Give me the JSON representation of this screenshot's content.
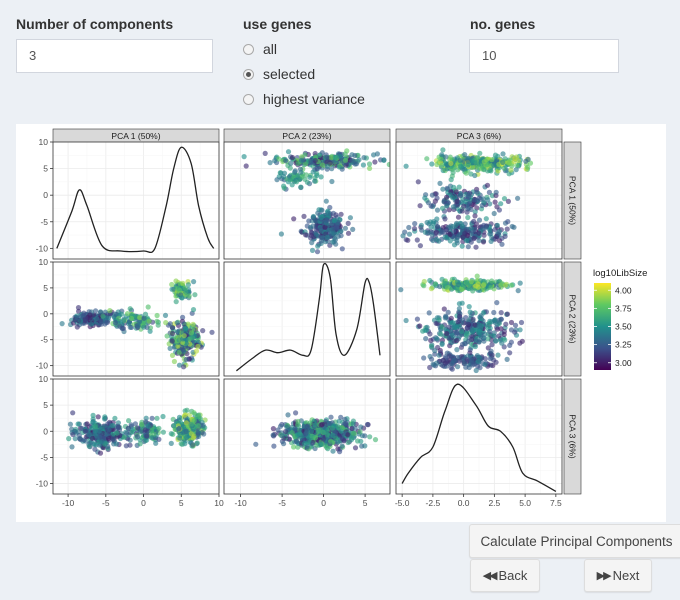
{
  "controls": {
    "num_components": {
      "label": "Number of components",
      "value": "3"
    },
    "use_genes": {
      "label": "use genes",
      "options": [
        {
          "label": "all",
          "checked": false
        },
        {
          "label": "selected",
          "checked": true
        },
        {
          "label": "highest variance",
          "checked": false
        }
      ]
    },
    "no_genes": {
      "label": "no. genes",
      "value": "10"
    }
  },
  "buttons": {
    "calculate": "Calculate Principal Components",
    "back": "Back",
    "back_icon": "double-left-arrow",
    "next": "Next",
    "next_icon": "double-right-arrow"
  },
  "chart_data": {
    "type": "scatter",
    "layout": "pairs-matrix",
    "strip_labels_top": [
      "PCA 1 (50%)",
      "PCA 2 (23%)",
      "PCA 3 (6%)"
    ],
    "strip_labels_right": [
      "PCA 1 (50%)",
      "PCA 2 (23%)",
      "PCA 3 (6%)"
    ],
    "y_ticks": [
      [
        "10",
        "5",
        "0",
        "-5",
        "-10"
      ],
      [
        "10",
        "5",
        "0",
        "-5",
        "-10"
      ],
      [
        "10",
        "5",
        "0",
        "-5",
        "-10"
      ]
    ],
    "y_tick_values": [
      10,
      5,
      0,
      -5,
      -10
    ],
    "x_ticks": [
      [
        "-10",
        "-5",
        "0",
        "5",
        "10"
      ],
      [
        "-10",
        "-5",
        "0",
        "5"
      ],
      [
        "-5.0",
        "-2.5",
        "0.0",
        "2.5",
        "5.0",
        "7.5"
      ]
    ],
    "axis_ranges": {
      "pca1": [
        -12,
        10
      ],
      "pca2": [
        -12,
        8
      ],
      "pca3": [
        -5.5,
        8
      ],
      "y": [
        -12,
        10
      ]
    },
    "legend": {
      "title": "log10LibSize",
      "ticks": [
        "4.00",
        "3.75",
        "3.50",
        "3.25",
        "3.00"
      ],
      "tick_values": [
        4.0,
        3.75,
        3.5,
        3.25,
        3.0
      ],
      "range": [
        2.9,
        4.1
      ],
      "colors": [
        "#fde725",
        "#5ec962",
        "#21918c",
        "#3b528b",
        "#440154"
      ],
      "placement": "right"
    },
    "grid": true,
    "density_curves": {
      "pca1": [
        [
          -11.5,
          -10
        ],
        [
          -9.5,
          -3
        ],
        [
          -8.5,
          1
        ],
        [
          -7.5,
          -2
        ],
        [
          -5.5,
          -9.5
        ],
        [
          -3,
          -10.5
        ],
        [
          0,
          -10.5
        ],
        [
          1.5,
          -10
        ],
        [
          3,
          -2
        ],
        [
          4,
          5
        ],
        [
          5,
          9
        ],
        [
          6.3,
          6
        ],
        [
          7.3,
          -2
        ],
        [
          8.5,
          -8
        ],
        [
          9.3,
          -10
        ]
      ],
      "pca2": [
        [
          -10.5,
          -11
        ],
        [
          -8.5,
          -8.5
        ],
        [
          -7,
          -7
        ],
        [
          -5.5,
          -7.5
        ],
        [
          -4,
          -7
        ],
        [
          -2.5,
          -8
        ],
        [
          -1.5,
          -7
        ],
        [
          -0.5,
          3
        ],
        [
          0,
          9.5
        ],
        [
          0.8,
          7
        ],
        [
          1.5,
          -4
        ],
        [
          2.5,
          -8
        ],
        [
          4,
          -3
        ],
        [
          5,
          6
        ],
        [
          5.5,
          6
        ],
        [
          6,
          2
        ],
        [
          6.8,
          -8
        ]
      ],
      "pca3": [
        [
          -5,
          -10
        ],
        [
          -4.5,
          -8
        ],
        [
          -3.5,
          -5
        ],
        [
          -2.5,
          -3
        ],
        [
          -1.5,
          4
        ],
        [
          -0.5,
          9
        ],
        [
          1,
          5
        ],
        [
          2,
          1
        ],
        [
          3,
          0
        ],
        [
          4,
          -3
        ],
        [
          4.8,
          -8
        ],
        [
          6,
          -9.5
        ],
        [
          7.5,
          -11.5
        ]
      ]
    },
    "scatter_clusters": {
      "r0c1": [
        {
          "cx": 0,
          "cy": 6.5,
          "sx": 5,
          "sy": 1.2,
          "n": 240,
          "c": [
            3.0,
            3.9
          ]
        },
        {
          "cx": -3.5,
          "cy": 3,
          "sx": 2.5,
          "sy": 2,
          "n": 60,
          "c": [
            3.2,
            3.8
          ]
        },
        {
          "cx": 0,
          "cy": -6,
          "sx": 2.3,
          "sy": 2.8,
          "n": 230,
          "c": [
            3.0,
            3.5
          ]
        }
      ],
      "r0c2": [
        {
          "cx": 1.2,
          "cy": 6,
          "sx": 3.4,
          "sy": 1.3,
          "n": 300,
          "c": [
            3.3,
            4.0
          ]
        },
        {
          "cx": 0,
          "cy": -1,
          "sx": 3.2,
          "sy": 2.6,
          "n": 150,
          "c": [
            3.0,
            3.6
          ]
        },
        {
          "cx": 0,
          "cy": -7,
          "sx": 3.4,
          "sy": 1.9,
          "n": 220,
          "c": [
            3.0,
            3.5
          ]
        }
      ],
      "r1c0": [
        {
          "cx": -6.5,
          "cy": -1,
          "sx": 2.6,
          "sy": 1.4,
          "n": 160,
          "c": [
            3.0,
            3.5
          ]
        },
        {
          "cx": -1,
          "cy": -1.5,
          "sx": 3,
          "sy": 1.8,
          "n": 100,
          "c": [
            3.1,
            3.9
          ]
        },
        {
          "cx": 5,
          "cy": 4.5,
          "sx": 1.2,
          "sy": 1.8,
          "n": 80,
          "c": [
            3.3,
            4.0
          ]
        },
        {
          "cx": 5.5,
          "cy": -5,
          "sx": 1.7,
          "sy": 3.2,
          "n": 230,
          "c": [
            3.0,
            4.0
          ]
        }
      ],
      "r1c2": [
        {
          "cx": 0.5,
          "cy": 5.5,
          "sx": 3,
          "sy": 0.9,
          "n": 200,
          "c": [
            3.3,
            4.0
          ]
        },
        {
          "cx": 0.5,
          "cy": -3,
          "sx": 3.2,
          "sy": 3.5,
          "n": 300,
          "c": [
            3.0,
            3.6
          ]
        },
        {
          "cx": 0,
          "cy": -9,
          "sx": 3,
          "sy": 1.4,
          "n": 120,
          "c": [
            3.0,
            3.4
          ]
        }
      ],
      "r2c0": [
        {
          "cx": -5.5,
          "cy": -0.5,
          "sx": 3,
          "sy": 2.3,
          "n": 260,
          "c": [
            3.0,
            3.6
          ]
        },
        {
          "cx": 0.5,
          "cy": 0,
          "sx": 2,
          "sy": 2.3,
          "n": 90,
          "c": [
            3.1,
            3.8
          ]
        },
        {
          "cx": 6,
          "cy": 0.5,
          "sx": 1.8,
          "sy": 2.5,
          "n": 240,
          "c": [
            3.2,
            4.0
          ]
        }
      ],
      "r2c1": [
        {
          "cx": -0.5,
          "cy": -0.5,
          "sx": 4.2,
          "sy": 2.4,
          "n": 500,
          "c": [
            3.0,
            3.8
          ]
        }
      ]
    }
  }
}
